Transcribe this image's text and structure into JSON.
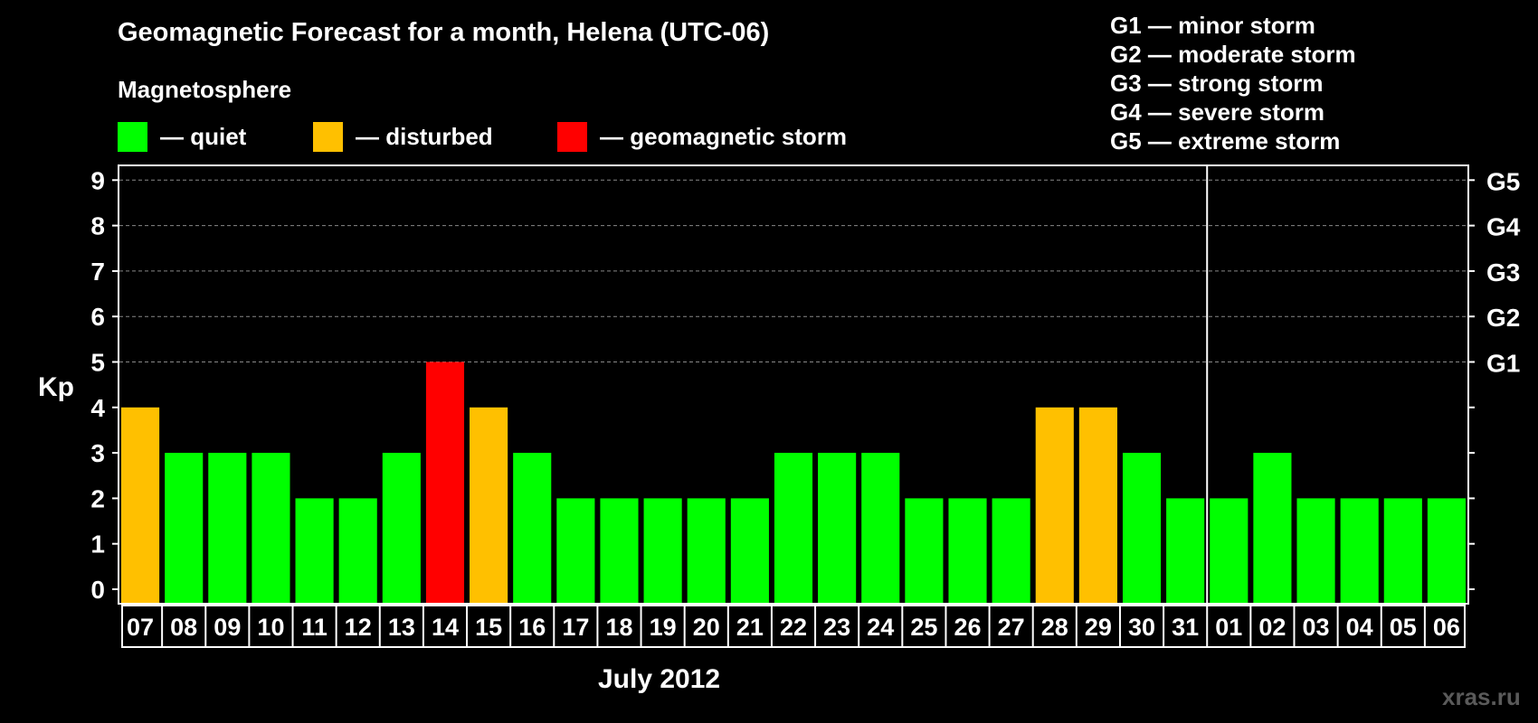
{
  "header": {
    "title": "Geomagnetic Forecast for a month, Helena (UTC-06)"
  },
  "legend": {
    "title": "Magnetosphere",
    "items": [
      {
        "label": "— quiet",
        "color": "#00ff00"
      },
      {
        "label": "— disturbed",
        "color": "#ffc000"
      },
      {
        "label": "— geomagnetic storm",
        "color": "#ff0000"
      }
    ]
  },
  "storm_scale": [
    "G1 — minor storm",
    "G2 — moderate storm",
    "G3 — strong storm",
    "G4 — severe storm",
    "G5 — extreme storm"
  ],
  "footer": {
    "month_label": "July 2012",
    "watermark": "xras.ru"
  },
  "chart_data": {
    "type": "bar",
    "title": "Geomagnetic Forecast for a month, Helena (UTC-06)",
    "xlabel": "July 2012",
    "ylabel": "Kp",
    "ylim": [
      0,
      9
    ],
    "yticks": [
      0,
      1,
      2,
      3,
      4,
      5,
      6,
      7,
      8,
      9
    ],
    "right_axis_labels": [
      {
        "kp": 5,
        "label": "G1"
      },
      {
        "kp": 6,
        "label": "G2"
      },
      {
        "kp": 7,
        "label": "G3"
      },
      {
        "kp": 8,
        "label": "G4"
      },
      {
        "kp": 9,
        "label": "G5"
      }
    ],
    "grid": "dashed at Kp 5-9",
    "month_separator_after": "31",
    "categories": [
      "07",
      "08",
      "09",
      "10",
      "11",
      "12",
      "13",
      "14",
      "15",
      "16",
      "17",
      "18",
      "19",
      "20",
      "21",
      "22",
      "23",
      "24",
      "25",
      "26",
      "27",
      "28",
      "29",
      "30",
      "31",
      "01",
      "02",
      "03",
      "04",
      "05",
      "06"
    ],
    "values": [
      4,
      3,
      3,
      3,
      2,
      2,
      3,
      5,
      4,
      3,
      2,
      2,
      2,
      2,
      2,
      3,
      3,
      3,
      2,
      2,
      2,
      4,
      4,
      3,
      2,
      2,
      3,
      2,
      2,
      2,
      2
    ],
    "status": [
      "disturbed",
      "quiet",
      "quiet",
      "quiet",
      "quiet",
      "quiet",
      "quiet",
      "storm",
      "disturbed",
      "quiet",
      "quiet",
      "quiet",
      "quiet",
      "quiet",
      "quiet",
      "quiet",
      "quiet",
      "quiet",
      "quiet",
      "quiet",
      "quiet",
      "disturbed",
      "disturbed",
      "quiet",
      "quiet",
      "quiet",
      "quiet",
      "quiet",
      "quiet",
      "quiet",
      "quiet"
    ],
    "status_colors": {
      "quiet": "#00ff00",
      "disturbed": "#ffc000",
      "storm": "#ff0000"
    }
  }
}
